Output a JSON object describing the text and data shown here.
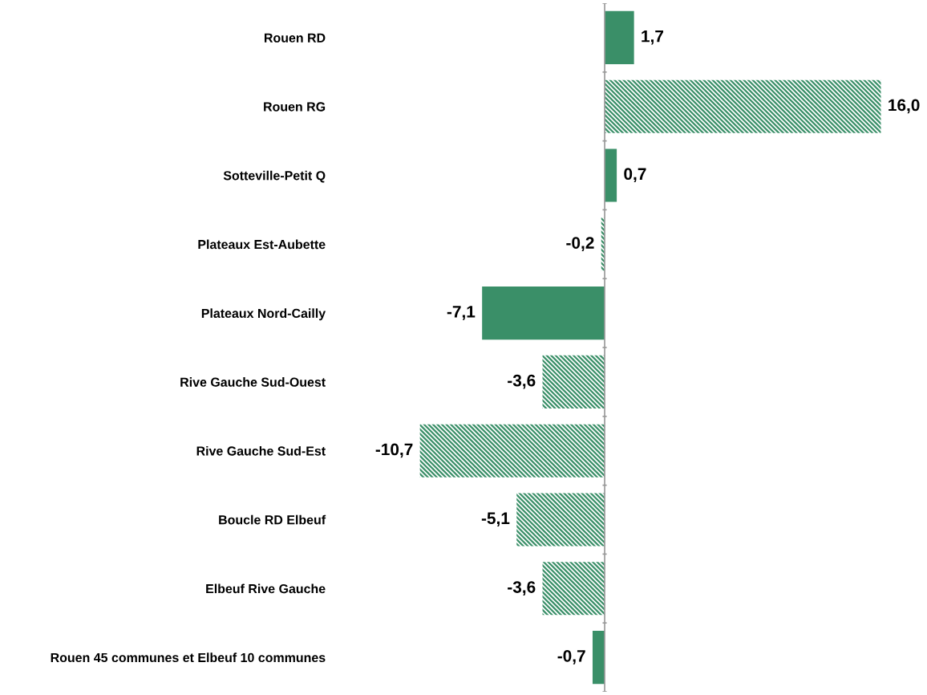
{
  "chart_data": {
    "type": "bar",
    "orientation": "horizontal",
    "categories": [
      "Rouen RD",
      "Rouen RG",
      "Sotteville-Petit Q",
      "Plateaux Est-Aubette",
      "Plateaux Nord-Cailly",
      "Rive Gauche Sud-Ouest",
      "Rive Gauche Sud-Est",
      "Boucle RD Elbeuf",
      "Elbeuf Rive Gauche",
      "Rouen 45 communes et Elbeuf 10 communes"
    ],
    "series": [
      {
        "color": "#3a8f68",
        "values": [
          1.7,
          null,
          0.7,
          null,
          -7.1,
          null,
          null,
          null,
          null,
          -0.7
        ],
        "value_labels": [
          "1,7",
          null,
          "0,7",
          null,
          "-7,1",
          null,
          null,
          null,
          null,
          "-0,7"
        ]
      },
      {
        "color": "#3a8f68",
        "values": [
          null,
          16.0,
          null,
          -0.2,
          null,
          -3.6,
          -10.7,
          -5.1,
          -3.6,
          null
        ],
        "value_labels": [
          null,
          "16,0",
          null,
          "-0,2",
          null,
          "-3,6",
          "-10,7",
          "-5,1",
          "-3,6",
          null
        ]
      }
    ],
    "tick_labels": "y",
    "grid": false,
    "legend": false
  }
}
